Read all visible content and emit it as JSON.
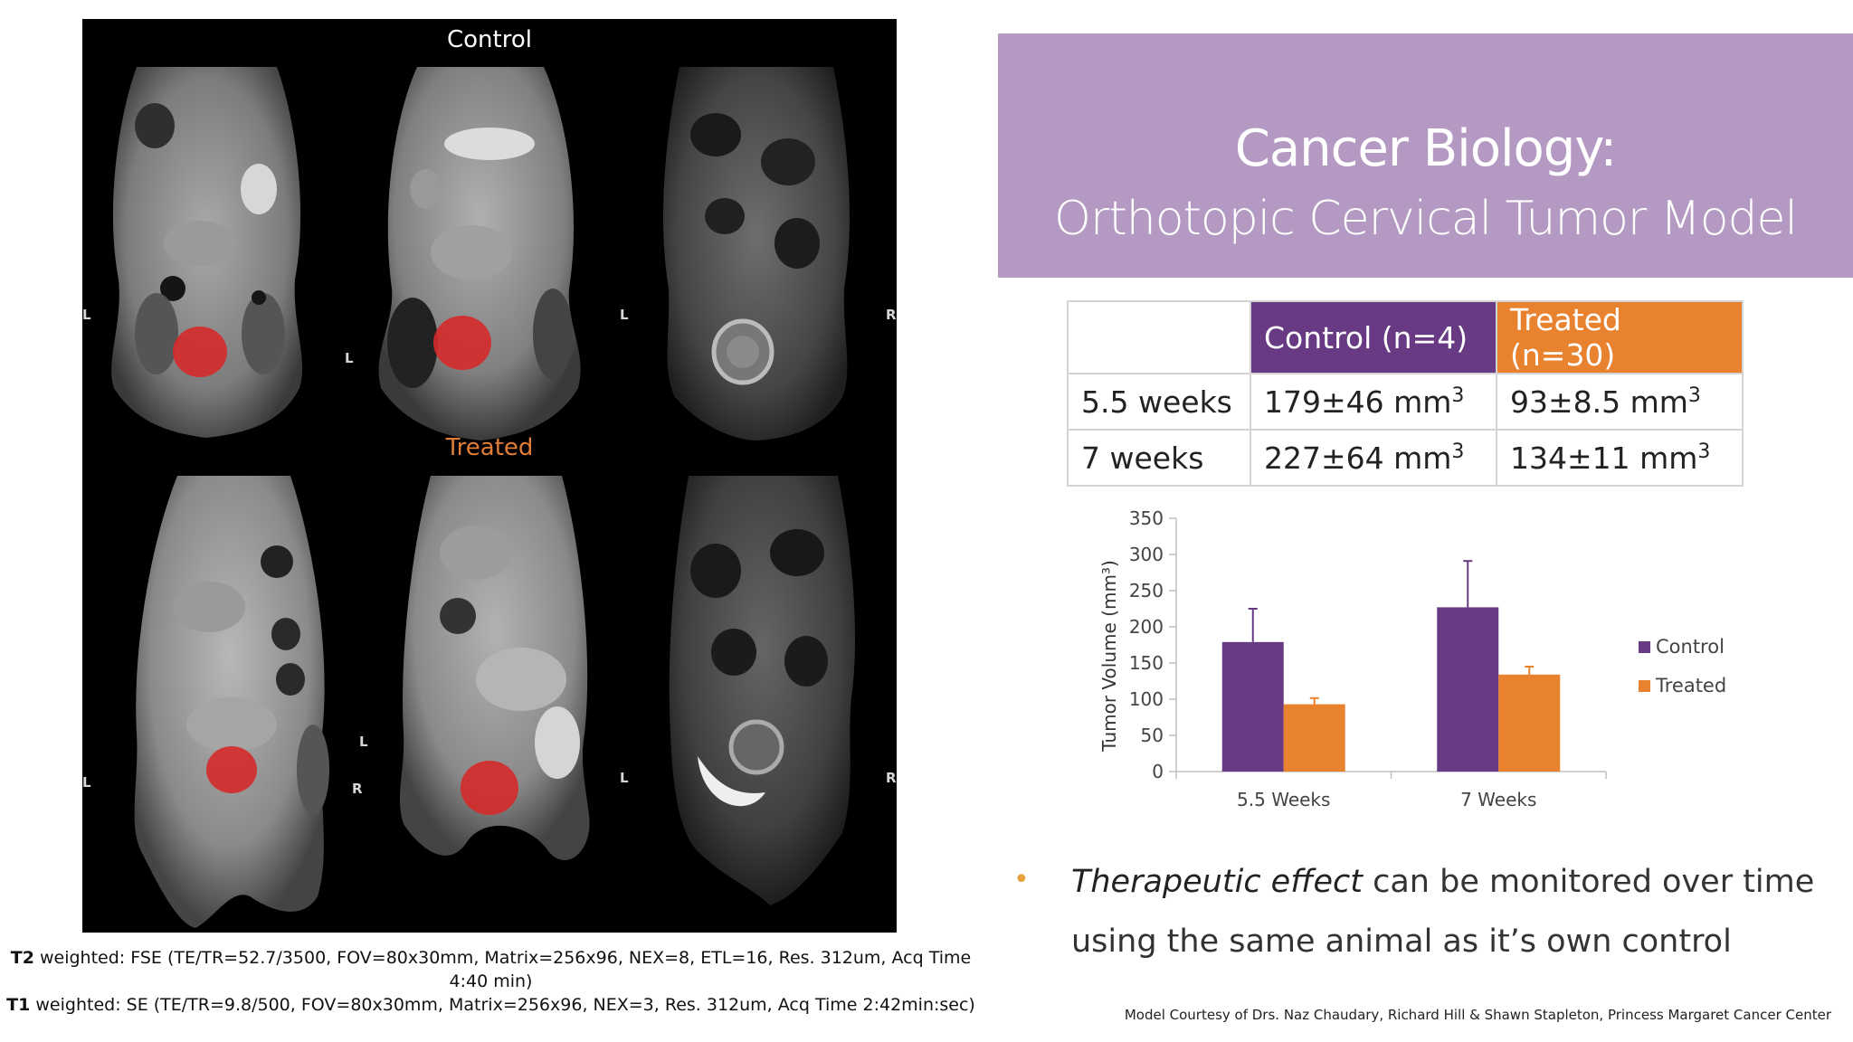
{
  "mri": {
    "control_label": "Control",
    "treated_label": "Treated",
    "orient": {
      "left": "L",
      "right": "R"
    },
    "tumor_color": "#d62a2a",
    "treated_color": "#e07d36"
  },
  "acq": {
    "t2_label": "T2",
    "t2_text": " weighted: FSE (TE/TR=52.7/3500, FOV=80x30mm, Matrix=256x96, NEX=8, ETL=16, Res. 312um, Acq Time 4:40 min)",
    "t1_label": "T1",
    "t1_text": " weighted: SE (TE/TR=9.8/500, FOV=80x30mm, Matrix=256x96, NEX=3, Res. 312um, Acq Time 2:42min:sec)"
  },
  "banner": {
    "title": "Cancer Biology:",
    "subtitle": "Orthotopic Cervical Tumor Model",
    "color": "#b49ac2"
  },
  "table": {
    "header_control": "Control (n=4)",
    "header_treated": "Treated (n=30)",
    "rows": [
      {
        "label": "5.5 weeks",
        "control": "179±46 mm",
        "treated": "93±8.5 mm",
        "unit_sup": "3"
      },
      {
        "label": "7 weeks",
        "control": "227±64 mm",
        "treated": "134±11 mm",
        "unit_sup": "3"
      }
    ]
  },
  "chart_data": {
    "type": "bar",
    "categories": [
      "5.5 Weeks",
      "7 Weeks"
    ],
    "series": [
      {
        "name": "Control",
        "values": [
          179,
          227
        ],
        "errors": [
          46,
          64
        ],
        "color": "#683a84"
      },
      {
        "name": "Treated",
        "values": [
          93,
          134
        ],
        "errors": [
          8.5,
          11
        ],
        "color": "#e8822f"
      }
    ],
    "ylabel": "Tumor Volume (mm³)",
    "ylim": [
      0,
      350
    ],
    "yticks": [
      0,
      50,
      100,
      150,
      200,
      250,
      300,
      350
    ],
    "legend_position": "right",
    "grid": false
  },
  "bullet": {
    "emphasis": "Therapeutic effect",
    "text": " can be monitored over time using the same animal as it’s own control"
  },
  "credit": "Model  Courtesy of Drs. Naz Chaudary, Richard Hill & Shawn Stapleton, Princess Margaret Cancer Center"
}
